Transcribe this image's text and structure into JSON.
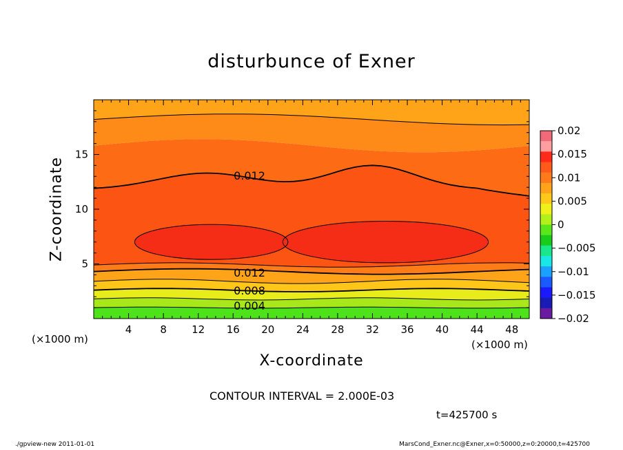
{
  "chart_data": {
    "type": "heatmap",
    "title": "disturbunce of Exner",
    "xlabel": "X-coordinate",
    "ylabel": "Z-coordinate",
    "x_unit": "(×1000 m)",
    "y_unit": "(×1000 m)",
    "xlim": [
      0,
      50
    ],
    "ylim": [
      0,
      20
    ],
    "x_ticks": [
      "4",
      "8",
      "12",
      "16",
      "20",
      "24",
      "28",
      "32",
      "36",
      "40",
      "44",
      "48"
    ],
    "y_ticks": [
      "5",
      "10",
      "15"
    ],
    "contour_interval": "CONTOUR INTERVAL = 2.000E-03",
    "time": "t=425700 s",
    "contour_labels": [
      "0.012",
      "0.012",
      "0.008",
      "0.004"
    ],
    "colorbar": {
      "ticks": [
        "0.02",
        "0.015",
        "0.01",
        "0.005",
        "0",
        "−0.005",
        "−0.01",
        "−0.015",
        "−0.02"
      ],
      "colors": [
        "#f06a7a",
        "#ff9e9e",
        "#ff2a1a",
        "#ff5a1a",
        "#ff7a1a",
        "#ffa31a",
        "#ffc81a",
        "#f0f01a",
        "#b4f01a",
        "#5ae61a",
        "#1acc1a",
        "#1ae68c",
        "#1ae6e6",
        "#1aa0ff",
        "#1a5aff",
        "#1a1aff",
        "#1a1ab4",
        "#6a1aa0"
      ]
    },
    "bands": [
      {
        "level": "0.014 to 0.016",
        "color": "#f52d17"
      },
      {
        "level": "0.012 to 0.014",
        "color": "#fb5413"
      },
      {
        "level": "0.010 to 0.012",
        "color": "#fe7c17"
      },
      {
        "level": "0.008 to 0.010",
        "color": "#ffa318"
      },
      {
        "level": "0.006 to 0.008",
        "color": "#ffc61a"
      },
      {
        "level": "0.004 to 0.006",
        "color": "#e8ec1a"
      },
      {
        "level": "0.002 to 0.004",
        "color": "#a8e81a"
      },
      {
        "level": "0.000 to 0.002",
        "color": "#4ee21a"
      }
    ]
  },
  "footer": {
    "left": "./gpview-new   2011-01-01",
    "right": "MarsCond_Exner.nc@Exner,x=0:50000,z=0:20000,t=425700"
  }
}
